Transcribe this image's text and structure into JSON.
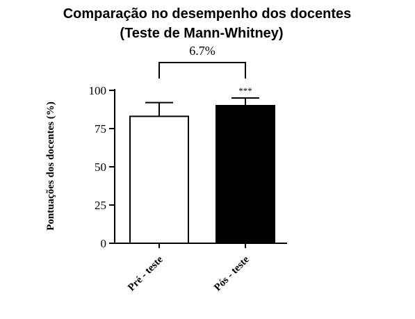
{
  "chart_data": {
    "type": "bar",
    "title": "Comparação no desempenho dos docentes",
    "subtitle": "(Teste de Mann-Whitney)",
    "xlabel": "",
    "ylabel": "Pontuações dos docentes (%)",
    "ylim": [
      0,
      100
    ],
    "yticks": [
      "0",
      "25",
      "50",
      "75",
      "100"
    ],
    "categories": [
      "Pré - teste",
      "Pós - teste"
    ],
    "values": [
      83,
      90
    ],
    "error_upper": [
      92,
      95
    ],
    "bar_fill": [
      "#ffffff",
      "#000000"
    ],
    "comparison_label": "6.7%",
    "significance": "***",
    "grid": false,
    "legend": "none"
  }
}
